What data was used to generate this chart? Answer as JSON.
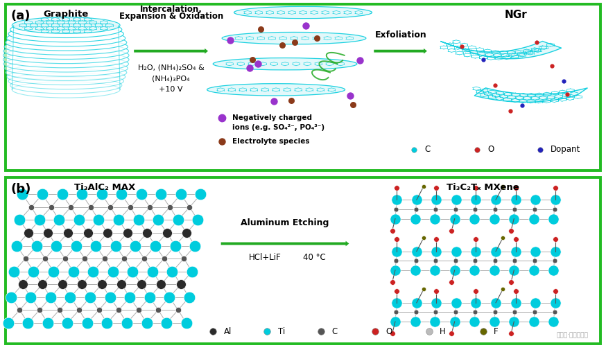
{
  "panel_a_label": "(a)",
  "panel_b_label": "(b)",
  "border_color": "#22bb22",
  "background_color": "#ffffff",
  "graphite_label": "Graphite",
  "ngr_label": "NGr",
  "max_label": "Ti₃AlC₂ MAX",
  "mxene_label": "Ti₃C₂Tₓ MXene",
  "arrow1_top": "Intercalation,\nExpansion & Oxidation",
  "arrow1_bot": "H₂O, (NH₄)₂SO₄ &\n(NH₄)₃PO₄\n+10 V",
  "arrow2_top": "Exfoliation",
  "arrow3_top": "Aluminum Etching",
  "arrow3_bot": "HCl+LiF     40 °C",
  "neg_ion_text": "Negatively charged\nions (e.g. SO₄²⁻, PO₄³⁻)",
  "electrolyte_text": "Electrolyte species",
  "neg_ion_color": "#9933cc",
  "electrolyte_color": "#8b3a1a",
  "cyan": "#00ccdd",
  "dark_al": "#2a2a2a",
  "gray_c": "#555555",
  "red_o": "#cc2222",
  "olive_f": "#666600",
  "light_gray_h": "#bbbbbb",
  "green_arrow": "#22aa22",
  "dopant_blue": "#2222bb",
  "red_o_ngr": "#cc2222",
  "c_cyan_ngr": "#00ccdd",
  "watermark": "公众号·石墨烯研究"
}
